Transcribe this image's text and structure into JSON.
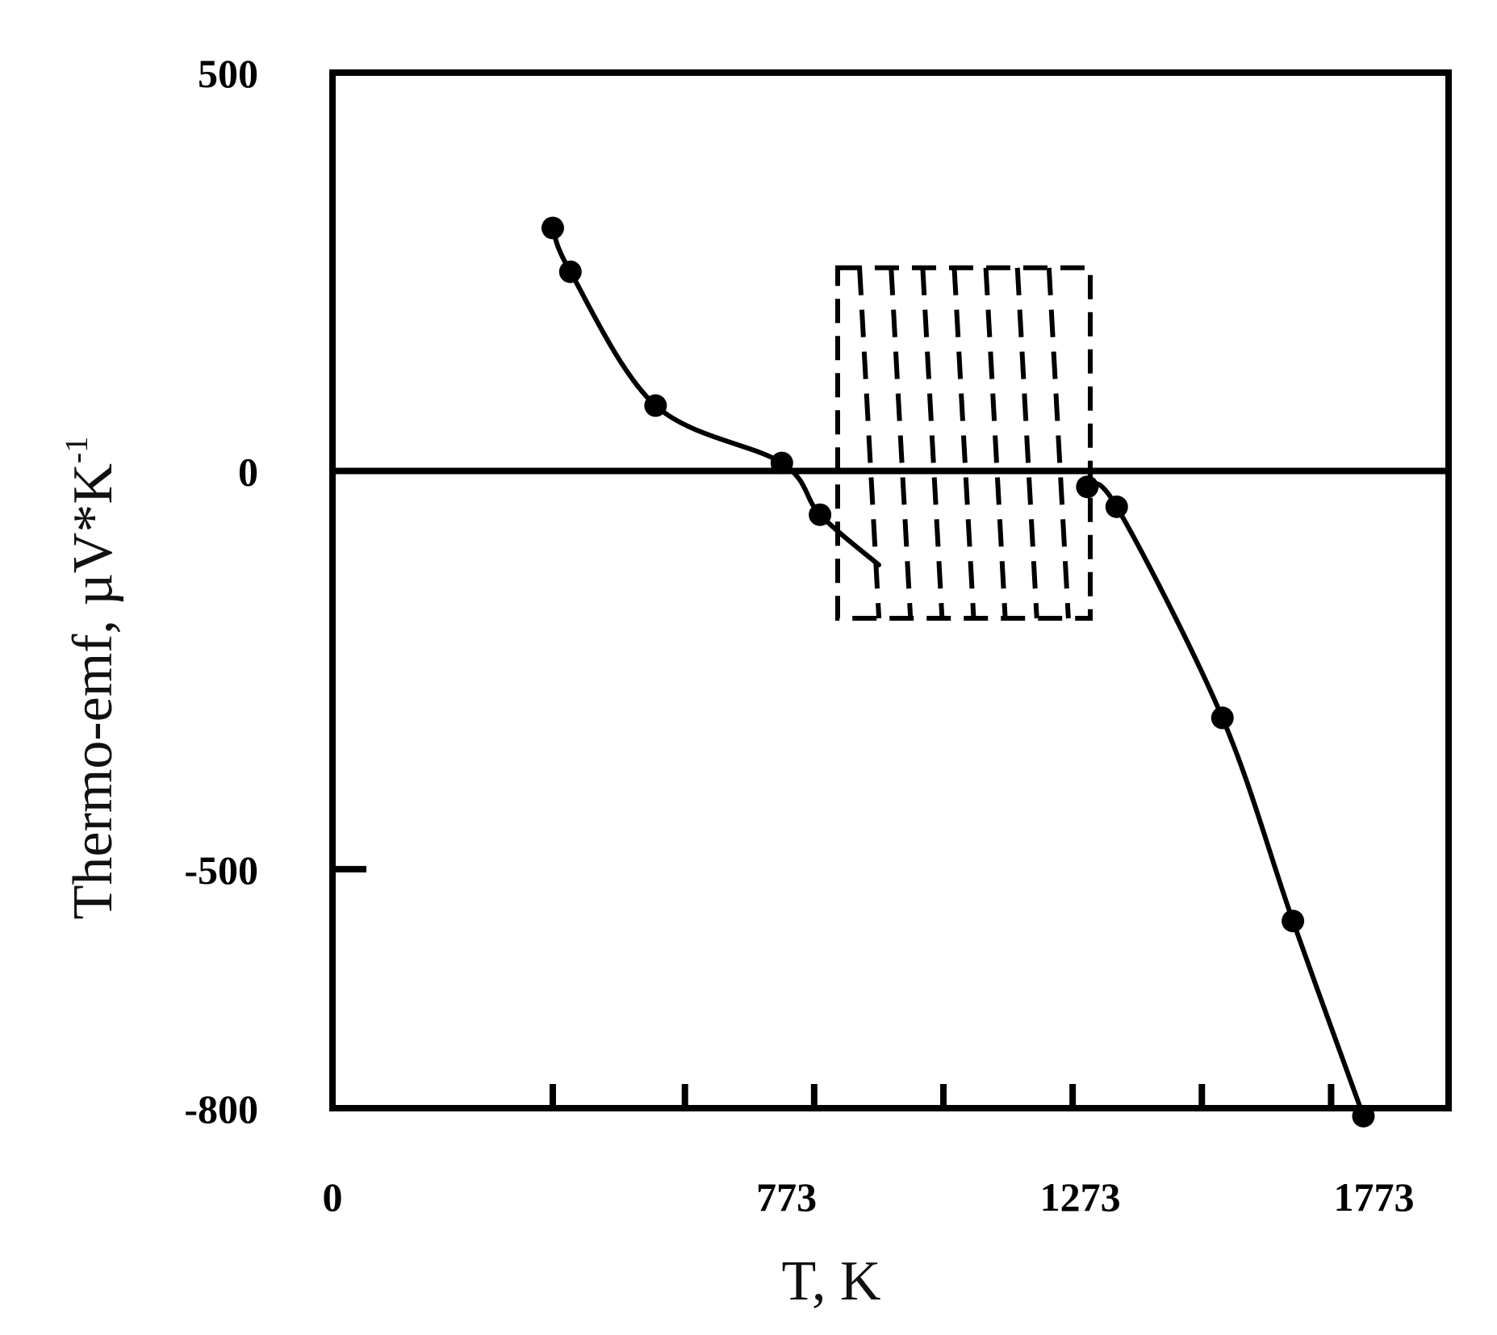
{
  "chart_data": {
    "type": "line",
    "xlabel": "T, K",
    "ylabel": "Thermo-emf, µV*K",
    "ylabel_superscript": "-1",
    "xlim": [
      0,
      1900
    ],
    "ylim": [
      -800,
      500
    ],
    "x_ticks": [
      0,
      773,
      1273,
      1773
    ],
    "x_tick_labels": [
      "0",
      "773",
      "1273",
      "1773"
    ],
    "y_ticks": [
      500,
      0,
      -500,
      -800
    ],
    "y_tick_labels": [
      "500",
      "0",
      "-500",
      "-800"
    ],
    "grid": false,
    "series": [
      {
        "points": [
          {
            "x": 375,
            "y": 305
          },
          {
            "x": 405,
            "y": 250
          },
          {
            "x": 550,
            "y": 82
          },
          {
            "x": 765,
            "y": 10
          },
          {
            "x": 830,
            "y": -55
          }
        ],
        "curve_extends_to": {
          "x": 930,
          "y": -118
        }
      },
      {
        "points": [
          {
            "x": 1285,
            "y": -20
          },
          {
            "x": 1335,
            "y": -45
          },
          {
            "x": 1515,
            "y": -310
          },
          {
            "x": 1635,
            "y": -565
          },
          {
            "x": 1755,
            "y": -810
          }
        ]
      }
    ],
    "shaded_region": {
      "x": [
        860,
        1290
      ],
      "y": [
        -185,
        255
      ],
      "style": "dashed"
    }
  }
}
